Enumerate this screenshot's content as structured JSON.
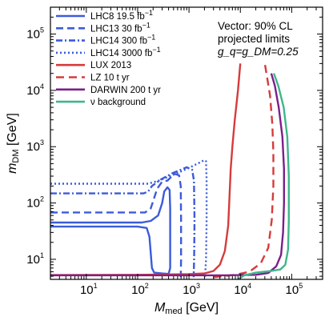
{
  "chart_data": {
    "type": "line",
    "xscale": "log",
    "yscale": "log",
    "xlim": [
      2,
      400000
    ],
    "ylim": [
      4.4,
      300000
    ],
    "xlabel": {
      "main": "M",
      "sub": "med",
      "unit": " [GeV]"
    },
    "ylabel": {
      "main": "m",
      "sub": "DM",
      "unit": " [GeV]"
    },
    "x_ticks": [
      {
        "value": 10,
        "base": "10",
        "exp": "1"
      },
      {
        "value": 100,
        "base": "10",
        "exp": "2"
      },
      {
        "value": 1000,
        "base": "10",
        "exp": "3"
      },
      {
        "value": 10000,
        "base": "10",
        "exp": "4"
      },
      {
        "value": 100000,
        "base": "10",
        "exp": "5"
      }
    ],
    "y_ticks": [
      {
        "value": 10,
        "base": "10",
        "exp": "1"
      },
      {
        "value": 100,
        "base": "10",
        "exp": "2"
      },
      {
        "value": 1000,
        "base": "10",
        "exp": "3"
      },
      {
        "value": 10000,
        "base": "10",
        "exp": "4"
      },
      {
        "value": 100000,
        "base": "10",
        "exp": "5"
      }
    ],
    "grid": false,
    "legend_position": "top-left",
    "annotation": {
      "line1": "Vector: 90% CL",
      "line2": "projected limits",
      "line3": "g_q=g_DM=0.25"
    },
    "series": [
      {
        "name": "LHC8 19.5 fb^-1",
        "label_text": "LHC8 19.5 fb",
        "label_sup": "−1",
        "color": "#3b5bdb",
        "dash": "solid",
        "points": [
          [
            2,
            38
          ],
          [
            100,
            38
          ],
          [
            150,
            36
          ],
          [
            170,
            25
          ],
          [
            180,
            13
          ],
          [
            190,
            7
          ],
          [
            210,
            5.8
          ],
          [
            300,
            5.6
          ],
          [
            400,
            5.5
          ],
          [
            430,
            7
          ],
          [
            430,
            20
          ],
          [
            430,
            80
          ],
          [
            420,
            170
          ],
          [
            380,
            190
          ],
          [
            330,
            160
          ],
          [
            300,
            100
          ],
          [
            250,
            60
          ],
          [
            180,
            48
          ],
          [
            120,
            45
          ],
          [
            2,
            45
          ]
        ]
      },
      {
        "name": "LHC13 30 fb^-1",
        "label_text": "LHC13 30 fb",
        "label_sup": "−1",
        "color": "#3b5bdb",
        "dash": "9,5",
        "points": [
          [
            2,
            68
          ],
          [
            140,
            68
          ],
          [
            180,
            80
          ],
          [
            240,
            180
          ],
          [
            300,
            240
          ],
          [
            380,
            250
          ],
          [
            520,
            330
          ],
          [
            640,
            310
          ],
          [
            690,
            200
          ],
          [
            700,
            50
          ],
          [
            700,
            10
          ],
          [
            690,
            4.8
          ]
        ]
      },
      {
        "name": "LHC14 300 fb^-1",
        "label_text": "LHC14 300 fb",
        "label_sup": "−1",
        "color": "#3b5bdb",
        "dash": "8,3,2,3",
        "points": [
          [
            2,
            148
          ],
          [
            130,
            148
          ],
          [
            160,
            160
          ],
          [
            190,
            200
          ],
          [
            280,
            260
          ],
          [
            480,
            340
          ],
          [
            900,
            430
          ],
          [
            1150,
            390
          ],
          [
            1250,
            250
          ],
          [
            1280,
            50
          ],
          [
            1260,
            10
          ],
          [
            1230,
            4.8
          ]
        ]
      },
      {
        "name": "LHC14 3000 fb^-1",
        "label_text": "LHC14 3000 fb",
        "label_sup": "−1",
        "color": "#3b5bdb",
        "dash": "2,3",
        "points": [
          [
            2,
            220
          ],
          [
            160,
            220
          ],
          [
            260,
            250
          ],
          [
            550,
            330
          ],
          [
            1000,
            420
          ],
          [
            1600,
            520
          ],
          [
            2000,
            580
          ],
          [
            2150,
            550
          ],
          [
            2200,
            250
          ],
          [
            2200,
            50
          ],
          [
            2150,
            10
          ],
          [
            2050,
            4.8
          ]
        ]
      },
      {
        "name": "LUX 2013",
        "label_text": "LUX 2013",
        "label_sup": "",
        "color": "#d63b3b",
        "dash": "solid",
        "points": [
          [
            2,
            5.25
          ],
          [
            100,
            5.3
          ],
          [
            300,
            5.35
          ],
          [
            1000,
            5.45
          ],
          [
            2000,
            5.6
          ],
          [
            3000,
            6.2
          ],
          [
            4000,
            8
          ],
          [
            5000,
            14
          ],
          [
            5800,
            40
          ],
          [
            6200,
            150
          ],
          [
            6500,
            400
          ],
          [
            7000,
            1000
          ],
          [
            7800,
            3000
          ],
          [
            9000,
            10000
          ],
          [
            10000,
            30000
          ]
        ]
      },
      {
        "name": "LZ 10 t yr",
        "label_text": "LZ 10 t yr",
        "label_sup": "",
        "color": "#d63b3b",
        "dash": "10,6",
        "points": [
          [
            3000,
            4.8
          ],
          [
            8000,
            5.3
          ],
          [
            15000,
            6
          ],
          [
            25000,
            8.5
          ],
          [
            35000,
            16
          ],
          [
            41000,
            50
          ],
          [
            44000,
            200
          ],
          [
            44000,
            800
          ],
          [
            42000,
            2500
          ],
          [
            38000,
            8000
          ],
          [
            34000,
            15000
          ],
          [
            30000,
            30000
          ]
        ]
      },
      {
        "name": "DARWIN 200 t yr",
        "label_text": "DARWIN 200 t yr",
        "label_sup": "",
        "color": "#7b1f8a",
        "dash": "solid",
        "points": [
          [
            2,
            5.2
          ],
          [
            100,
            5.2
          ],
          [
            1000,
            5.2
          ],
          [
            5000,
            5.2
          ],
          [
            20000,
            5.3
          ],
          [
            35000,
            5.7
          ],
          [
            50000,
            7.5
          ],
          [
            62000,
            12
          ],
          [
            68000,
            30
          ],
          [
            71000,
            100
          ],
          [
            71000,
            400
          ],
          [
            66000,
            1500
          ],
          [
            56000,
            5000
          ],
          [
            47000,
            12000
          ],
          [
            40000,
            20000
          ]
        ]
      },
      {
        "name": "ν background",
        "label_text": "ν background",
        "label_sup": "",
        "color": "#3fb68b",
        "dash": "solid",
        "points": [
          [
            9000,
            4.4
          ],
          [
            12000,
            5.2
          ],
          [
            20000,
            5.8
          ],
          [
            40000,
            6.2
          ],
          [
            60000,
            6.6
          ],
          [
            75000,
            8
          ],
          [
            85000,
            15
          ],
          [
            88000,
            50
          ],
          [
            88000,
            300
          ],
          [
            82000,
            1500
          ],
          [
            70000,
            5000
          ],
          [
            55000,
            12000
          ],
          [
            45000,
            20000
          ]
        ]
      }
    ]
  }
}
